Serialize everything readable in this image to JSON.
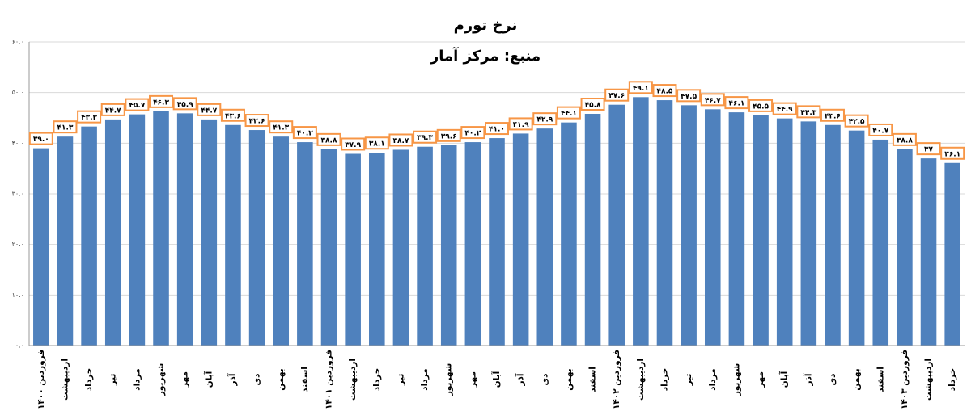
{
  "chart_data": {
    "type": "bar",
    "title": "نرخ تورم",
    "subtitle": "منبع: مرکز آمار",
    "categories": [
      "فروردین ۱۴۰۰",
      "اردیبهشت",
      "خرداد",
      "تیر",
      "مرداد",
      "شهریور",
      "مهر",
      "آبان",
      "آذر",
      "دی",
      "بهمن",
      "اسفند",
      "فروردین ۱۴۰۱",
      "اردیبهشت",
      "خرداد",
      "تیر",
      "مرداد",
      "شهریور",
      "مهر",
      "آبان",
      "آذر",
      "دی",
      "بهمن",
      "اسفند",
      "فروردین ۱۴۰۲",
      "اردیبهشت",
      "خرداد",
      "تیر",
      "مرداد",
      "شهریور",
      "مهر",
      "آبان",
      "آذر",
      "دی",
      "بهمن",
      "اسفند",
      "فروردین ۱۴۰۳",
      "اردیبهشت",
      "خرداد"
    ],
    "values": [
      39.0,
      41.3,
      43.3,
      44.7,
      45.7,
      46.3,
      45.9,
      44.7,
      43.6,
      42.6,
      41.3,
      40.2,
      38.8,
      37.9,
      38.1,
      38.7,
      39.3,
      39.6,
      40.2,
      41.0,
      41.9,
      42.9,
      44.1,
      45.8,
      47.6,
      49.1,
      48.5,
      47.5,
      46.7,
      46.1,
      45.5,
      44.9,
      44.3,
      43.6,
      42.5,
      40.7,
      38.8,
      37,
      36.1
    ],
    "value_labels": [
      "۳۹.۰",
      "۴۱.۳",
      "۴۳.۳",
      "۴۴.۷",
      "۴۵.۷",
      "۴۶.۳",
      "۴۵.۹",
      "۴۴.۷",
      "۴۳.۶",
      "۴۲.۶",
      "۴۱.۳",
      "۴۰.۲",
      "۳۸.۸",
      "۳۷.۹",
      "۳۸.۱",
      "۳۸.۷",
      "۳۹.۳",
      "۳۹.۶",
      "۴۰.۲",
      "۴۱.۰",
      "۴۱.۹",
      "۴۲.۹",
      "۴۴.۱",
      "۴۵.۸",
      "۴۷.۶",
      "۴۹.۱",
      "۴۸.۵",
      "۴۷.۵",
      "۴۶.۷",
      "۴۶.۱",
      "۴۵.۵",
      "۴۴.۹",
      "۴۴.۳",
      "۴۳.۶",
      "۴۲.۵",
      "۴۰.۷",
      "۳۸.۸",
      "۳۷",
      "۳۶.۱"
    ],
    "color": "#4f81bd",
    "label_border": "#f79646",
    "ylim": [
      0,
      60
    ],
    "yticks": [
      {
        "value": 0,
        "label": "۰.۰"
      },
      {
        "value": 10,
        "label": "۱۰.۰"
      },
      {
        "value": 20,
        "label": "۲۰.۰"
      },
      {
        "value": 30,
        "label": "۳۰.۰"
      },
      {
        "value": 40,
        "label": "۴۰.۰"
      },
      {
        "value": 50,
        "label": "۵۰.۰"
      },
      {
        "value": 60,
        "label": "۶۰.۰"
      }
    ],
    "grid": true
  }
}
